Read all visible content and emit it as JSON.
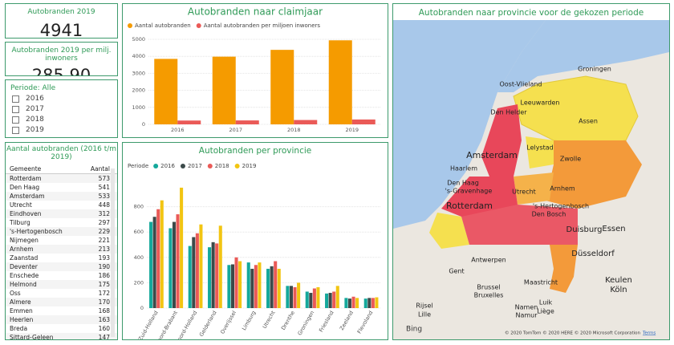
{
  "cards": [
    {
      "title": "Autobranden 2019",
      "value": "4941"
    },
    {
      "title": "Autobranden 2019 per milj. inwoners",
      "value": "285,90"
    }
  ],
  "slicer": {
    "title": "Periode: Alle",
    "items": [
      "2016",
      "2017",
      "2018",
      "2019"
    ]
  },
  "table": {
    "title": "Aantal autobranden (2016 t/m 2019)",
    "columns": [
      "Gemeente",
      "Aantal"
    ],
    "rows": [
      [
        "Rotterdam",
        573
      ],
      [
        "Den Haag",
        541
      ],
      [
        "Amsterdam",
        533
      ],
      [
        "Utrecht",
        448
      ],
      [
        "Eindhoven",
        312
      ],
      [
        "Tilburg",
        297
      ],
      [
        "'s-Hertogenbosch",
        229
      ],
      [
        "Nijmegen",
        221
      ],
      [
        "Arnhem",
        213
      ],
      [
        "Zaanstad",
        193
      ],
      [
        "Deventer",
        190
      ],
      [
        "Enschede",
        186
      ],
      [
        "Helmond",
        175
      ],
      [
        "Oss",
        172
      ],
      [
        "Almere",
        170
      ],
      [
        "Emmen",
        168
      ],
      [
        "Heerlen",
        163
      ],
      [
        "Breda",
        160
      ],
      [
        "Sittard-Geleen",
        147
      ]
    ]
  },
  "chart_data": [
    {
      "type": "bar",
      "title": "Autobranden naar claimjaar",
      "categories": [
        "2016",
        "2017",
        "2018",
        "2019"
      ],
      "series": [
        {
          "name": "Aantal autobranden",
          "color": "#f59b00",
          "values": [
            3850,
            3980,
            4380,
            4941
          ]
        },
        {
          "name": "Aantal autobranden per miljoen inwoners",
          "color": "#ea5a57",
          "values": [
            225,
            232,
            256,
            285.9
          ]
        }
      ],
      "ylim": [
        0,
        5000
      ],
      "yticks": [
        0,
        1000,
        2000,
        3000,
        4000,
        5000
      ],
      "grid": true
    },
    {
      "type": "bar",
      "title": "Autobranden per provincie",
      "legend_title": "Periode",
      "categories": [
        "Zuid-Holland",
        "Noord-Brabant",
        "Noord-Holland",
        "Gelderland",
        "Overijssel",
        "Limburg",
        "Utrecht",
        "Drenthe",
        "Groningen",
        "Friesland",
        "Zeeland",
        "Flevoland"
      ],
      "series": [
        {
          "name": "2016",
          "color": "#14a89b",
          "values": [
            680,
            630,
            490,
            480,
            340,
            360,
            310,
            175,
            130,
            115,
            80,
            75
          ]
        },
        {
          "name": "2017",
          "color": "#3c4a4a",
          "values": [
            720,
            680,
            560,
            520,
            345,
            310,
            330,
            175,
            120,
            120,
            75,
            80
          ]
        },
        {
          "name": "2018",
          "color": "#ea5a57",
          "values": [
            780,
            740,
            590,
            510,
            400,
            340,
            370,
            165,
            155,
            130,
            90,
            80
          ]
        },
        {
          "name": "2019",
          "color": "#f2c512",
          "values": [
            850,
            950,
            660,
            650,
            370,
            360,
            310,
            200,
            165,
            175,
            80,
            85
          ]
        }
      ],
      "ylim": [
        0,
        1000
      ],
      "yticks": [
        0,
        200,
        400,
        600,
        800
      ],
      "grid": true
    }
  ],
  "map": {
    "title": "Autobranden naar provincie voor de gekozen periode",
    "labels": [
      "Oost-Vlieland",
      "Groningen",
      "Leeuwarden",
      "Den Helder",
      "Assen",
      "Lelystad",
      "Amsterdam",
      "Haarlem",
      "Zwolle",
      "Den Haag",
      "'s-Gravenhage",
      "Utrecht",
      "Arnhem",
      "Rotterdam",
      "'s-Hertogenbosch",
      "Den Bosch",
      "Duisburg",
      "Essen",
      "Antwerpen",
      "Düsseldorf",
      "Gent",
      "Brussel",
      "Bruxelles",
      "Maastricht",
      "Keulen",
      "Köln",
      "Rijsel",
      "Lille",
      "Namen",
      "Namur",
      "Luik",
      "Liège"
    ],
    "logo": "Bing",
    "copyright": "© 2020 TomTom © 2020 HERE © 2020 Microsoft Corporation",
    "terms": "Terms"
  }
}
